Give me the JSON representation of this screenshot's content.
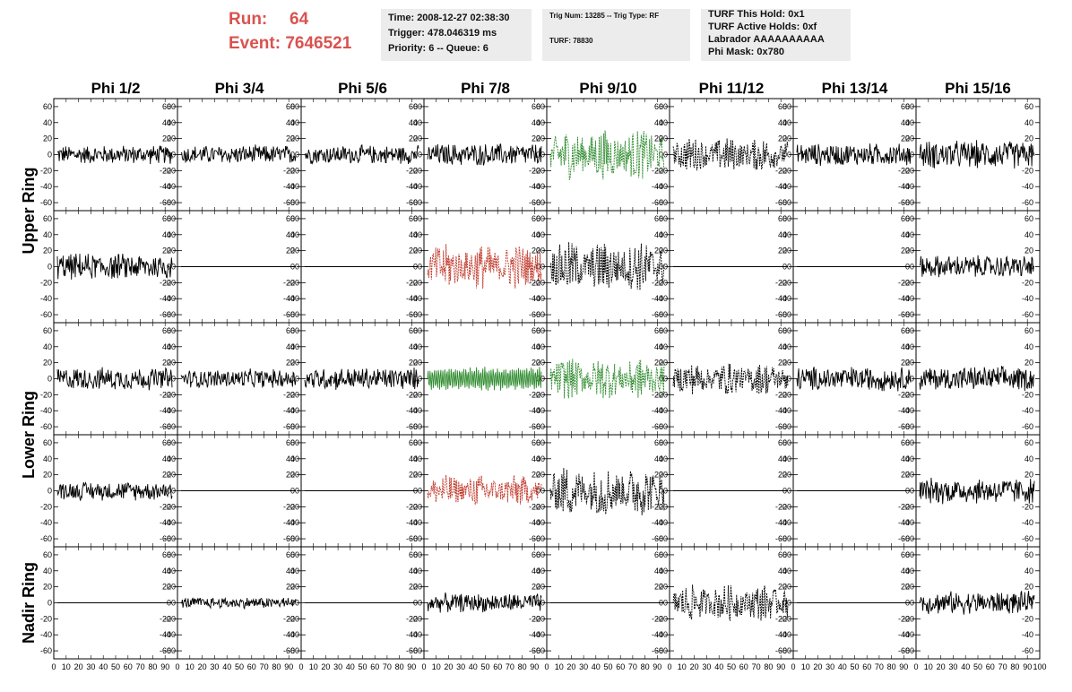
{
  "header": {
    "run_label": "Run:",
    "run_value": "64",
    "event_label": "Event: 7646521",
    "time": "Time: 2008-12-27 02:38:30",
    "trigger": "Trigger: 478.046319 ms",
    "priority": "Priority: 6 -- Queue: 6",
    "trig_num": "Trig Num: 13285 -- Trig Type: RF",
    "turf": "TURF: 78830",
    "turf_hold": "TURF This Hold: 0x1",
    "turf_active": "TURF Active Holds: 0xf",
    "labrador": "Labrador AAAAAAAAAA",
    "phi_mask": "Phi Mask: 0x780"
  },
  "colors": {
    "default": "#000000",
    "green": "#2e8b2e",
    "red": "#c0392b"
  },
  "chart_data": {
    "type": "line",
    "columns": [
      "Phi 1/2",
      "Phi 3/4",
      "Phi 5/6",
      "Phi 7/8",
      "Phi 9/10",
      "Phi 11/12",
      "Phi 13/14",
      "Phi 15/16"
    ],
    "rows": [
      {
        "name": "upper",
        "label": "Upper Ring",
        "panels": 2
      },
      {
        "name": "lower",
        "label": "Lower Ring",
        "panels": 2
      },
      {
        "name": "nadir",
        "label": "Nadir Ring",
        "panels": 1
      }
    ],
    "ylim": [
      -70,
      70
    ],
    "y_ticks": [
      -60,
      -40,
      -20,
      0,
      20,
      40,
      60
    ],
    "xlim": [
      0,
      100
    ],
    "x_tick_labels": [
      "0",
      "10",
      "20",
      "30",
      "40",
      "50",
      "60",
      "70",
      "80",
      "90",
      "100"
    ],
    "traces": [
      [
        [
          "noise",
          10,
          "black"
        ],
        [
          "noise",
          10,
          "black"
        ],
        [
          "noise",
          10,
          "black"
        ],
        [
          "noise",
          12,
          "black"
        ],
        [
          "burst",
          22,
          "green"
        ],
        [
          "burst",
          15,
          "black"
        ],
        [
          "noise",
          12,
          "black"
        ],
        [
          "noise",
          15,
          "black"
        ]
      ],
      [
        [
          "noise",
          14,
          "black"
        ],
        [
          "flat",
          0,
          "black"
        ],
        [
          "flat",
          0,
          "black"
        ],
        [
          "burst",
          20,
          "red"
        ],
        [
          "burst",
          22,
          "black"
        ],
        [
          "flat",
          0,
          "black"
        ],
        [
          "flat",
          0,
          "black"
        ],
        [
          "noise",
          12,
          "black"
        ]
      ],
      [
        [
          "noise",
          12,
          "black"
        ],
        [
          "noise",
          10,
          "black"
        ],
        [
          "noise",
          12,
          "black"
        ],
        [
          "osc",
          14,
          "green"
        ],
        [
          "burst",
          18,
          "green"
        ],
        [
          "burst",
          14,
          "black"
        ],
        [
          "noise",
          13,
          "black"
        ],
        [
          "noise",
          13,
          "black"
        ]
      ],
      [
        [
          "noise",
          10,
          "black"
        ],
        [
          "flat",
          0,
          "black"
        ],
        [
          "flat",
          0,
          "black"
        ],
        [
          "burst",
          14,
          "red"
        ],
        [
          "burst",
          22,
          "black"
        ],
        [
          "flat",
          0,
          "black"
        ],
        [
          "flat",
          0,
          "black"
        ],
        [
          "noise",
          14,
          "black"
        ]
      ],
      [
        [
          "flat",
          0,
          "black"
        ],
        [
          "noise",
          6,
          "black"
        ],
        [
          "flat",
          0,
          "black"
        ],
        [
          "noise",
          10,
          "black"
        ],
        [
          "flat",
          0,
          "black"
        ],
        [
          "burst",
          16,
          "black"
        ],
        [
          "flat",
          0,
          "black"
        ],
        [
          "noise",
          12,
          "black"
        ]
      ]
    ]
  }
}
